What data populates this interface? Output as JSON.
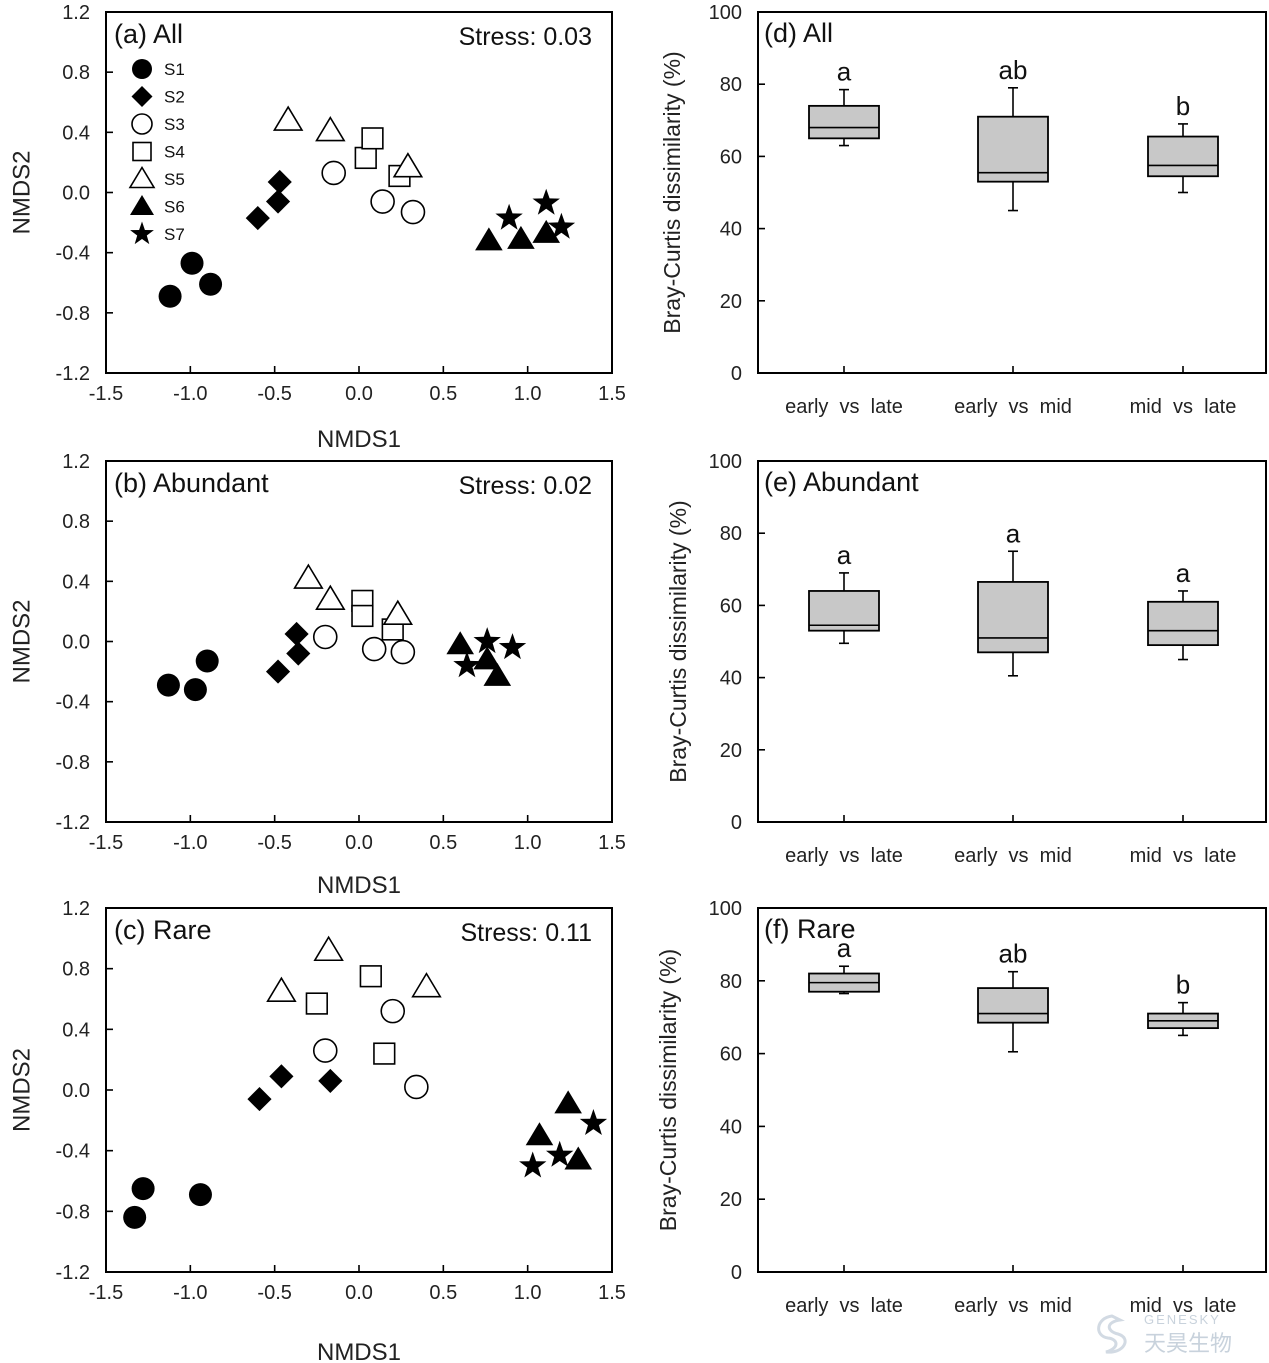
{
  "chart_data": [
    {
      "type": "scatter",
      "panel_label": "(a) All",
      "stress_label": "Stress: 0.03",
      "xlabel": "NMDS1",
      "ylabel": "NMDS2",
      "xlim": [
        -1.5,
        1.5
      ],
      "ylim": [
        -1.2,
        1.2
      ],
      "xticks": [
        "-1.5",
        "-1.0",
        "-0.5",
        "0.0",
        "0.5",
        "1.0",
        "1.5"
      ],
      "yticks": [
        "1.2",
        "0.8",
        "0.4",
        "0.0",
        "-0.4",
        "-0.8",
        "-1.2"
      ],
      "legend": [
        {
          "name": "S1",
          "marker": "circle-filled"
        },
        {
          "name": "S2",
          "marker": "diamond-filled"
        },
        {
          "name": "S3",
          "marker": "circle-open"
        },
        {
          "name": "S4",
          "marker": "square-open"
        },
        {
          "name": "S5",
          "marker": "triangle-open"
        },
        {
          "name": "S6",
          "marker": "triangle-filled"
        },
        {
          "name": "S7",
          "marker": "star-filled"
        }
      ],
      "series": [
        {
          "name": "S1",
          "points": [
            [
              -1.12,
              -0.69
            ],
            [
              -0.99,
              -0.47
            ],
            [
              -0.88,
              -0.61
            ]
          ]
        },
        {
          "name": "S2",
          "points": [
            [
              -0.6,
              -0.17
            ],
            [
              -0.48,
              -0.06
            ],
            [
              -0.47,
              0.07
            ]
          ]
        },
        {
          "name": "S3",
          "points": [
            [
              -0.15,
              0.13
            ],
            [
              0.14,
              -0.06
            ],
            [
              0.32,
              -0.13
            ]
          ]
        },
        {
          "name": "S4",
          "points": [
            [
              0.04,
              0.23
            ],
            [
              0.08,
              0.36
            ],
            [
              0.24,
              0.11
            ]
          ]
        },
        {
          "name": "S5",
          "points": [
            [
              -0.42,
              0.48
            ],
            [
              -0.17,
              0.41
            ],
            [
              0.29,
              0.17
            ]
          ]
        },
        {
          "name": "S6",
          "points": [
            [
              0.77,
              -0.32
            ],
            [
              0.96,
              -0.31
            ],
            [
              1.11,
              -0.27
            ]
          ]
        },
        {
          "name": "S7",
          "points": [
            [
              0.89,
              -0.17
            ],
            [
              1.11,
              -0.07
            ],
            [
              1.2,
              -0.23
            ]
          ]
        }
      ]
    },
    {
      "type": "scatter",
      "panel_label": "(b) Abundant",
      "stress_label": "Stress: 0.02",
      "xlabel": "NMDS1",
      "ylabel": "NMDS2",
      "xlim": [
        -1.5,
        1.5
      ],
      "ylim": [
        -1.2,
        1.2
      ],
      "xticks": [
        "-1.5",
        "-1.0",
        "-0.5",
        "0.0",
        "0.5",
        "1.0",
        "1.5"
      ],
      "yticks": [
        "1.2",
        "0.8",
        "0.4",
        "0.0",
        "-0.4",
        "-0.8",
        "-1.2"
      ],
      "series": [
        {
          "name": "S1",
          "points": [
            [
              -1.13,
              -0.29
            ],
            [
              -0.97,
              -0.32
            ],
            [
              -0.9,
              -0.13
            ]
          ]
        },
        {
          "name": "S2",
          "points": [
            [
              -0.48,
              -0.2
            ],
            [
              -0.36,
              -0.08
            ],
            [
              -0.37,
              0.05
            ]
          ]
        },
        {
          "name": "S3",
          "points": [
            [
              -0.2,
              0.03
            ],
            [
              0.09,
              -0.05
            ],
            [
              0.26,
              -0.07
            ]
          ]
        },
        {
          "name": "S4",
          "points": [
            [
              0.02,
              0.27
            ],
            [
              0.02,
              0.17
            ],
            [
              0.2,
              0.08
            ]
          ]
        },
        {
          "name": "S5",
          "points": [
            [
              -0.3,
              0.42
            ],
            [
              -0.17,
              0.28
            ],
            [
              0.23,
              0.18
            ]
          ]
        },
        {
          "name": "S6",
          "points": [
            [
              0.6,
              -0.02
            ],
            [
              0.76,
              -0.12
            ],
            [
              0.82,
              -0.23
            ]
          ]
        },
        {
          "name": "S7",
          "points": [
            [
              0.64,
              -0.16
            ],
            [
              0.76,
              0.0
            ],
            [
              0.91,
              -0.04
            ]
          ]
        }
      ]
    },
    {
      "type": "scatter",
      "panel_label": "(c) Rare",
      "stress_label": "Stress: 0.11",
      "xlabel": "NMDS1",
      "ylabel": "NMDS2",
      "xlim": [
        -1.5,
        1.5
      ],
      "ylim": [
        -1.2,
        1.2
      ],
      "xticks": [
        "-1.5",
        "-1.0",
        "-0.5",
        "0.0",
        "0.5",
        "1.0",
        "1.5"
      ],
      "yticks": [
        "1.2",
        "0.8",
        "0.4",
        "0.0",
        "-0.4",
        "-0.8",
        "-1.2"
      ],
      "series": [
        {
          "name": "S1",
          "points": [
            [
              -1.33,
              -0.84
            ],
            [
              -1.28,
              -0.65
            ],
            [
              -0.94,
              -0.69
            ]
          ]
        },
        {
          "name": "S2",
          "points": [
            [
              -0.59,
              -0.06
            ],
            [
              -0.46,
              0.09
            ],
            [
              -0.17,
              0.06
            ]
          ]
        },
        {
          "name": "S3",
          "points": [
            [
              -0.2,
              0.26
            ],
            [
              0.2,
              0.52
            ],
            [
              0.34,
              0.02
            ]
          ]
        },
        {
          "name": "S4",
          "points": [
            [
              -0.25,
              0.57
            ],
            [
              0.07,
              0.75
            ],
            [
              0.15,
              0.24
            ]
          ]
        },
        {
          "name": "S5",
          "points": [
            [
              -0.46,
              0.65
            ],
            [
              -0.18,
              0.92
            ],
            [
              0.4,
              0.68
            ]
          ]
        },
        {
          "name": "S6",
          "points": [
            [
              1.07,
              -0.3
            ],
            [
              1.24,
              -0.09
            ],
            [
              1.3,
              -0.46
            ]
          ]
        },
        {
          "name": "S7",
          "points": [
            [
              1.03,
              -0.5
            ],
            [
              1.19,
              -0.43
            ],
            [
              1.39,
              -0.22
            ]
          ]
        }
      ]
    },
    {
      "type": "box",
      "panel_label": "(d) All",
      "ylabel": "Bray-Curtis dissimilarity (%)",
      "ylim": [
        0,
        100
      ],
      "yticks": [
        "0",
        "20",
        "40",
        "60",
        "80",
        "100"
      ],
      "categories": [
        "early  vs  late",
        "early  vs  mid",
        "mid  vs  late"
      ],
      "letters": [
        "a",
        "ab",
        "b"
      ],
      "boxes": [
        {
          "whisker_low": 63,
          "q1": 65,
          "median": 68,
          "q3": 74,
          "whisker_high": 78.5
        },
        {
          "whisker_low": 45,
          "q1": 53,
          "median": 55.5,
          "q3": 71,
          "whisker_high": 79
        },
        {
          "whisker_low": 50,
          "q1": 54.5,
          "median": 57.5,
          "q3": 65.5,
          "whisker_high": 69
        }
      ]
    },
    {
      "type": "box",
      "panel_label": "(e) Abundant",
      "ylabel": "Bray-Curtis dissimilarity (%)",
      "ylim": [
        0,
        100
      ],
      "yticks": [
        "0",
        "20",
        "40",
        "60",
        "80",
        "100"
      ],
      "categories": [
        "early  vs  late",
        "early  vs  mid",
        "mid  vs  late"
      ],
      "letters": [
        "a",
        "a",
        "a"
      ],
      "boxes": [
        {
          "whisker_low": 49.5,
          "q1": 53,
          "median": 54.5,
          "q3": 64,
          "whisker_high": 69
        },
        {
          "whisker_low": 40.5,
          "q1": 47,
          "median": 51,
          "q3": 66.5,
          "whisker_high": 75
        },
        {
          "whisker_low": 45,
          "q1": 49,
          "median": 53,
          "q3": 61,
          "whisker_high": 64
        }
      ]
    },
    {
      "type": "box",
      "panel_label": "(f) Rare",
      "ylabel": "Bray-Curtis dissimilarity (%)",
      "ylim": [
        0,
        100
      ],
      "yticks": [
        "0",
        "20",
        "40",
        "60",
        "80",
        "100"
      ],
      "categories": [
        "early  vs  late",
        "early  vs  mid",
        "mid  vs  late"
      ],
      "letters": [
        "a",
        "ab",
        "b"
      ],
      "boxes": [
        {
          "whisker_low": 76.5,
          "q1": 77,
          "median": 79.5,
          "q3": 82,
          "whisker_high": 84
        },
        {
          "whisker_low": 60.5,
          "q1": 68.5,
          "median": 71,
          "q3": 78,
          "whisker_high": 82.5
        },
        {
          "whisker_low": 65,
          "q1": 67,
          "median": 69,
          "q3": 71,
          "whisker_high": 74
        }
      ]
    }
  ],
  "watermark": {
    "en": "GENESKY",
    "cn": "天昊生物"
  }
}
